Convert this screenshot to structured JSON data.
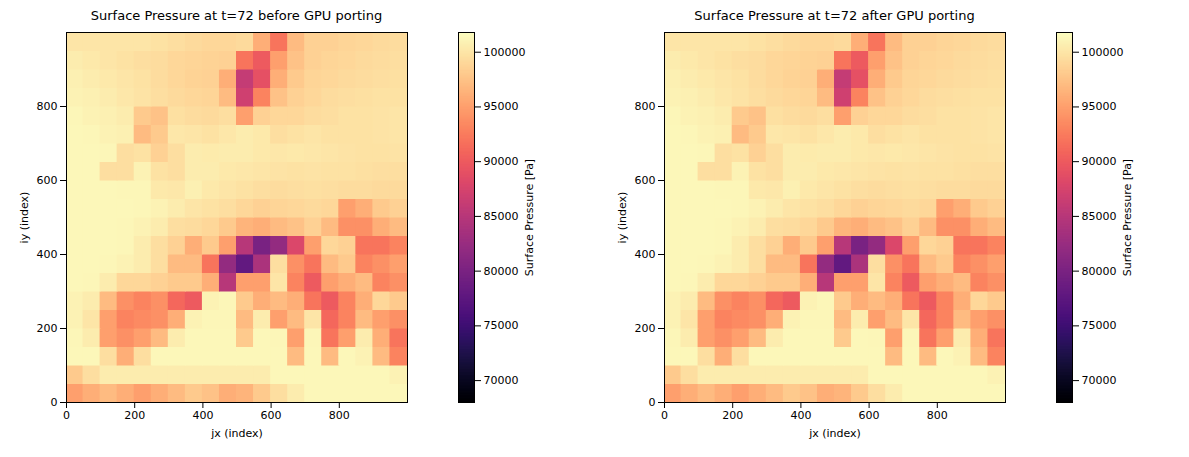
{
  "chart_data": [
    {
      "type": "heatmap",
      "title": "Surface Pressure at t=72 before GPU porting",
      "x_label": "jx (index)",
      "y_label": "iy (index)",
      "xlim": [
        0,
        1000
      ],
      "ylim": [
        0,
        1000
      ],
      "xticks": [
        0,
        200,
        400,
        600,
        800
      ],
      "yticks": [
        0,
        200,
        400,
        600,
        800
      ],
      "color": "magma",
      "cells": {
        "x_edges": [
          0,
          50,
          100,
          150,
          200,
          250,
          300,
          350,
          400,
          450,
          500,
          550,
          600,
          650,
          700,
          750,
          800,
          850,
          900,
          950,
          1000
        ],
        "y_edges": [
          0,
          50,
          100,
          150,
          200,
          250,
          300,
          350,
          400,
          450,
          500,
          550,
          600,
          650,
          700,
          750,
          800,
          850,
          900,
          950,
          1000
        ],
        "values": [
          [
            95000,
            96000,
            97000,
            96000,
            95000,
            96000,
            97000,
            98000,
            97500,
            96000,
            96500,
            98000,
            99500,
            100500,
            101300,
            101300,
            101300,
            101300,
            101300,
            101300
          ],
          [
            98000,
            99500,
            100500,
            100500,
            100500,
            100500,
            100500,
            100500,
            100500,
            100500,
            100500,
            100500,
            101300,
            101300,
            101300,
            101300,
            101300,
            101300,
            101300,
            101000
          ],
          [
            101300,
            101300,
            99500,
            96000,
            99500,
            101300,
            101300,
            101300,
            101300,
            101300,
            101300,
            101300,
            101300,
            97000,
            101300,
            97000,
            101300,
            101000,
            97000,
            93000
          ],
          [
            101200,
            100500,
            95000,
            94000,
            95000,
            97000,
            100500,
            101300,
            101300,
            101300,
            98000,
            101300,
            101200,
            95000,
            101200,
            92000,
            95000,
            100500,
            96000,
            92000
          ],
          [
            101000,
            100000,
            95000,
            93000,
            93500,
            94000,
            96000,
            101000,
            101200,
            101200,
            97000,
            100500,
            95000,
            97000,
            100000,
            91000,
            93000,
            97000,
            95000,
            94000
          ],
          [
            101000,
            100500,
            97000,
            94000,
            93000,
            94000,
            91000,
            90000,
            101000,
            101200,
            98000,
            96000,
            97000,
            96000,
            92000,
            90000,
            93000,
            96000,
            99000,
            98000
          ],
          [
            101300,
            101200,
            100500,
            99000,
            99000,
            98500,
            98000,
            98000,
            96000,
            85000,
            95000,
            95000,
            100000,
            93000,
            90000,
            95000,
            96000,
            97000,
            93000,
            94000
          ],
          [
            101300,
            101300,
            101200,
            101000,
            100500,
            99500,
            97000,
            97000,
            92000,
            82000,
            78000,
            84000,
            99500,
            94000,
            92000,
            97000,
            98000,
            93000,
            94000,
            95000
          ],
          [
            101300,
            101300,
            101300,
            101200,
            100500,
            99500,
            98500,
            96000,
            98000,
            95000,
            85000,
            80000,
            82000,
            88000,
            95000,
            99000,
            98500,
            92000,
            92000,
            93000
          ],
          [
            101300,
            101300,
            101300,
            101200,
            101000,
            100500,
            99500,
            99300,
            99000,
            98000,
            96500,
            96000,
            97000,
            97500,
            98500,
            97000,
            94000,
            94000,
            96000,
            97000
          ],
          [
            101300,
            101300,
            101300,
            101300,
            101200,
            101000,
            100500,
            100000,
            99800,
            99500,
            99000,
            98500,
            98800,
            99000,
            99200,
            99000,
            95000,
            96000,
            98000,
            98500
          ],
          [
            101300,
            101300,
            101300,
            101200,
            101200,
            100300,
            100200,
            100800,
            100300,
            100000,
            99800,
            99500,
            99400,
            99500,
            99600,
            99500,
            99400,
            99300,
            99200,
            99200
          ],
          [
            101300,
            101300,
            99500,
            99500,
            101000,
            99800,
            99500,
            100500,
            100500,
            100300,
            100200,
            100000,
            99900,
            99800,
            99900,
            99800,
            99700,
            99600,
            99500,
            99500
          ],
          [
            101300,
            101300,
            101200,
            99500,
            99800,
            98500,
            99500,
            100500,
            100400,
            100500,
            100600,
            100300,
            100200,
            100300,
            100200,
            100000,
            99900,
            99800,
            99800,
            99900
          ],
          [
            101300,
            101200,
            101000,
            100800,
            97000,
            98000,
            100200,
            100000,
            99800,
            100200,
            100500,
            100300,
            99500,
            99800,
            100000,
            99800,
            99700,
            99800,
            99900,
            100000
          ],
          [
            101200,
            101000,
            100800,
            100500,
            98000,
            97500,
            99600,
            99300,
            99200,
            99500,
            95000,
            98500,
            99000,
            99000,
            99300,
            99500,
            99700,
            99800,
            99900,
            100000
          ],
          [
            101000,
            100800,
            100500,
            100200,
            99900,
            99500,
            99200,
            98900,
            98800,
            97000,
            87000,
            93000,
            97500,
            98500,
            99000,
            99300,
            99500,
            99600,
            99700,
            99800
          ],
          [
            100800,
            100600,
            100300,
            100000,
            99700,
            99300,
            99000,
            98700,
            98600,
            96000,
            86000,
            89000,
            96000,
            98000,
            98800,
            99000,
            99200,
            99400,
            99500,
            99600
          ],
          [
            100500,
            100300,
            100000,
            99800,
            99500,
            99300,
            99000,
            98800,
            98700,
            98500,
            92000,
            90000,
            95000,
            97500,
            98500,
            98800,
            99000,
            99200,
            99400,
            99500
          ],
          [
            100000,
            100000,
            100000,
            100000,
            100000,
            99800,
            99500,
            99200,
            99000,
            99000,
            99200,
            96000,
            92000,
            97000,
            98500,
            98500,
            98800,
            99000,
            99200,
            99300
          ]
        ]
      },
      "colorbar": {
        "label": "Surface Pressure [Pa]",
        "range": [
          68000,
          101800
        ],
        "ticks": [
          70000,
          75000,
          80000,
          85000,
          90000,
          95000,
          100000
        ]
      }
    },
    {
      "type": "heatmap",
      "title": "Surface Pressure at t=72 after GPU porting",
      "x_label": "jx (index)",
      "y_label": "iy (index)",
      "xlim": [
        0,
        1000
      ],
      "ylim": [
        0,
        1000
      ],
      "xticks": [
        0,
        200,
        400,
        600,
        800
      ],
      "yticks": [
        0,
        200,
        400,
        600,
        800
      ],
      "color": "magma",
      "cells": {
        "x_edges": [
          0,
          50,
          100,
          150,
          200,
          250,
          300,
          350,
          400,
          450,
          500,
          550,
          600,
          650,
          700,
          750,
          800,
          850,
          900,
          950,
          1000
        ],
        "y_edges": [
          0,
          50,
          100,
          150,
          200,
          250,
          300,
          350,
          400,
          450,
          500,
          550,
          600,
          650,
          700,
          750,
          800,
          850,
          900,
          950,
          1000
        ],
        "values": [
          [
            95000,
            96000,
            97000,
            96000,
            95000,
            96000,
            97000,
            98000,
            97500,
            96000,
            96500,
            98000,
            99500,
            100500,
            101300,
            101300,
            101300,
            101300,
            101300,
            101300
          ],
          [
            98000,
            99500,
            100500,
            100500,
            100500,
            100500,
            100500,
            100500,
            100500,
            100500,
            100500,
            100500,
            101300,
            101300,
            101300,
            101300,
            101300,
            101300,
            101300,
            101000
          ],
          [
            101300,
            101300,
            99500,
            96000,
            99500,
            101300,
            101300,
            101300,
            101300,
            101300,
            101300,
            101300,
            101300,
            97000,
            101300,
            97000,
            101300,
            101000,
            97000,
            93000
          ],
          [
            101200,
            100500,
            95000,
            94000,
            95000,
            97000,
            100500,
            101300,
            101300,
            101300,
            98000,
            101300,
            101200,
            95000,
            101200,
            92000,
            95000,
            100500,
            96000,
            92000
          ],
          [
            101000,
            100000,
            95000,
            93000,
            93500,
            94000,
            96000,
            101000,
            101200,
            101200,
            97000,
            100500,
            95000,
            97000,
            100000,
            91000,
            93000,
            97000,
            95000,
            94000
          ],
          [
            101000,
            100500,
            97000,
            94000,
            93000,
            94000,
            91000,
            90000,
            101000,
            101200,
            98000,
            96000,
            97000,
            96000,
            92000,
            90000,
            93000,
            96000,
            99000,
            98000
          ],
          [
            101300,
            101200,
            100500,
            99000,
            99000,
            98500,
            98000,
            98000,
            96000,
            85000,
            95000,
            95000,
            100000,
            93000,
            90000,
            95000,
            96000,
            97000,
            93000,
            94000
          ],
          [
            101300,
            101300,
            101200,
            101000,
            100500,
            99500,
            97000,
            97000,
            92000,
            82000,
            78000,
            84000,
            99500,
            94000,
            92000,
            97000,
            98000,
            93000,
            94000,
            95000
          ],
          [
            101300,
            101300,
            101300,
            101200,
            100500,
            99500,
            98500,
            96000,
            98000,
            95000,
            85000,
            80000,
            82000,
            88000,
            95000,
            99000,
            98500,
            92000,
            92000,
            93000
          ],
          [
            101300,
            101300,
            101300,
            101200,
            101000,
            100500,
            99500,
            99300,
            99000,
            98000,
            96500,
            96000,
            97000,
            97500,
            98500,
            97000,
            94000,
            94000,
            96000,
            97000
          ],
          [
            101300,
            101300,
            101300,
            101300,
            101200,
            101000,
            100500,
            100000,
            99800,
            99500,
            99000,
            98500,
            98800,
            99000,
            99200,
            99000,
            95000,
            96000,
            98000,
            98500
          ],
          [
            101300,
            101300,
            101300,
            101200,
            101200,
            100300,
            100200,
            100800,
            100300,
            100000,
            99800,
            99500,
            99400,
            99500,
            99600,
            99500,
            99400,
            99300,
            99200,
            99200
          ],
          [
            101300,
            101300,
            99500,
            99500,
            101000,
            99800,
            99500,
            100500,
            100500,
            100300,
            100200,
            100000,
            99900,
            99800,
            99900,
            99800,
            99700,
            99600,
            99500,
            99500
          ],
          [
            101300,
            101300,
            101200,
            99500,
            99800,
            98500,
            99500,
            100500,
            100400,
            100500,
            100600,
            100300,
            100200,
            100300,
            100200,
            100000,
            99900,
            99800,
            99800,
            99900
          ],
          [
            101300,
            101200,
            101000,
            100800,
            97000,
            98000,
            100200,
            100000,
            99800,
            100200,
            100500,
            100300,
            99500,
            99800,
            100000,
            99800,
            99700,
            99800,
            99900,
            100000
          ],
          [
            101200,
            101000,
            100800,
            100500,
            98000,
            97500,
            99600,
            99300,
            99200,
            99500,
            95000,
            98500,
            99000,
            99000,
            99300,
            99500,
            99700,
            99800,
            99900,
            100000
          ],
          [
            101000,
            100800,
            100500,
            100200,
            99900,
            99500,
            99200,
            98900,
            98800,
            97000,
            87000,
            93000,
            97500,
            98500,
            99000,
            99300,
            99500,
            99600,
            99700,
            99800
          ],
          [
            100800,
            100600,
            100300,
            100000,
            99700,
            99300,
            99000,
            98700,
            98600,
            96000,
            86000,
            89000,
            96000,
            98000,
            98800,
            99000,
            99200,
            99400,
            99500,
            99600
          ],
          [
            100500,
            100300,
            100000,
            99800,
            99500,
            99300,
            99000,
            98800,
            98700,
            98500,
            92000,
            90000,
            95000,
            97500,
            98500,
            98800,
            99000,
            99200,
            99400,
            99500
          ],
          [
            100000,
            100000,
            100000,
            100000,
            100000,
            99800,
            99500,
            99200,
            99000,
            99000,
            99200,
            96000,
            92000,
            97000,
            98500,
            98500,
            98800,
            99000,
            99200,
            99300
          ]
        ]
      },
      "colorbar": {
        "label": "Surface Pressure [Pa]",
        "range": [
          68000,
          101800
        ],
        "ticks": [
          70000,
          75000,
          80000,
          85000,
          90000,
          95000,
          100000
        ]
      }
    }
  ]
}
